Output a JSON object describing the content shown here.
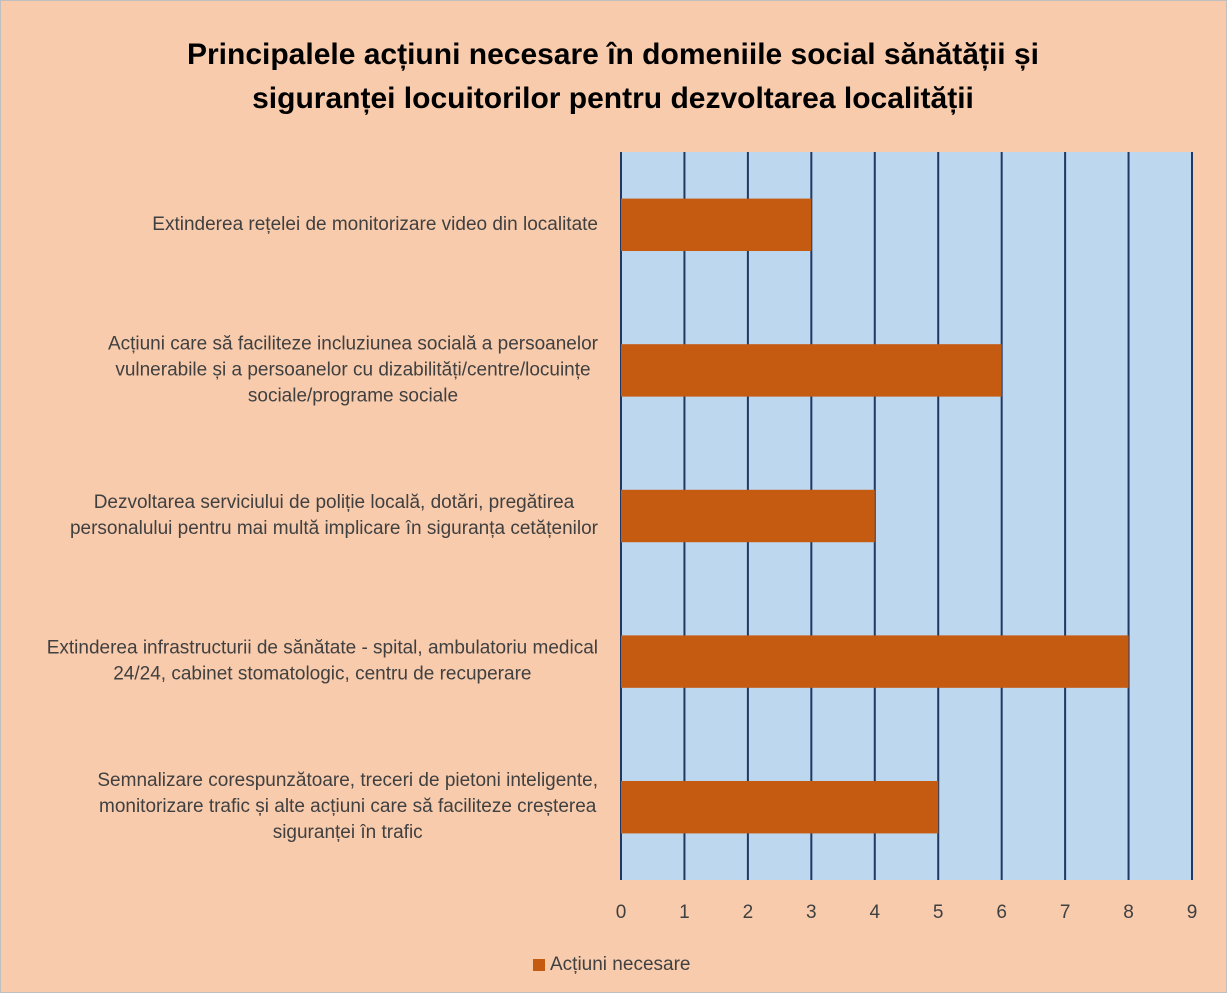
{
  "chart_data": {
    "type": "bar",
    "orientation": "horizontal",
    "title": "Principalele acțiuni necesare în domeniile social sănătății și siguranței locuitorilor pentru dezvoltarea localității",
    "categories": [
      "Extinderea rețelei de monitorizare video din localitate",
      "Acțiuni care să faciliteze incluziunea socială a persoanelor vulnerabile și a persoanelor cu dizabilități/centre/locuințe sociale/programe sociale",
      "Dezvoltarea serviciului de poliție locală, dotări, pregătirea personalului pentru mai multă implicare în siguranța cetățenilor",
      "Extinderea infrastructurii de sănătate - spital, ambulatoriu medical 24/24, cabinet stomatologic, centru de recuperare",
      "Semnalizare corespunzătoare, treceri de pietoni inteligente, monitorizare trafic și alte acțiuni care să faciliteze creșterea siguranței în trafic"
    ],
    "series": [
      {
        "name": "Acțiuni necesare",
        "color": "#c55a11",
        "values": [
          3,
          6,
          4,
          8,
          5
        ]
      }
    ],
    "xlim": [
      0,
      9
    ],
    "xticks": [
      0,
      1,
      2,
      3,
      4,
      5,
      6,
      7,
      8,
      9
    ],
    "grid": true,
    "legend": "bottom"
  }
}
